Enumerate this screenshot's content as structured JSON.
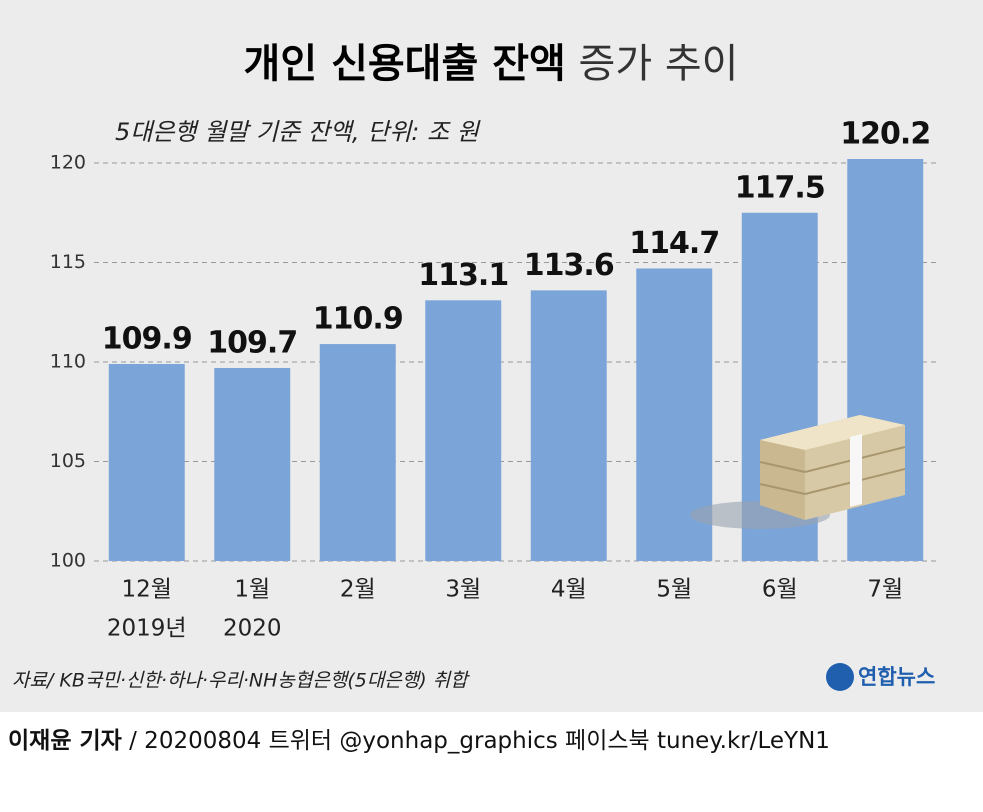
{
  "chart_data": {
    "type": "bar",
    "title": [
      "개인 신용대출 잔액",
      "증가 추이"
    ],
    "subtitle": "5대은행 월말 기준 잔액, 단위: 조 원",
    "categories": [
      "12월",
      "1월",
      "2월",
      "3월",
      "4월",
      "5월",
      "6월",
      "7월"
    ],
    "category_sublabels": [
      "2019년",
      "2020",
      null,
      null,
      null,
      null,
      null,
      null
    ],
    "values": [
      109.9,
      109.7,
      110.9,
      113.1,
      113.6,
      114.7,
      117.5,
      120.2
    ],
    "color": "#7ba4d8",
    "ylim": [
      100,
      120
    ],
    "yticks": [
      100,
      105,
      110,
      115,
      120
    ],
    "grid": true,
    "source": "자료/ KB국민·신한·하나·우리·NH농협은행(5대은행) 취합",
    "logo": "연합뉴스",
    "footer": [
      "이재윤 기자",
      "/ 20200804   트위터 @yonhap_graphics  페이스북 tuney.kr/LeYN1"
    ]
  }
}
